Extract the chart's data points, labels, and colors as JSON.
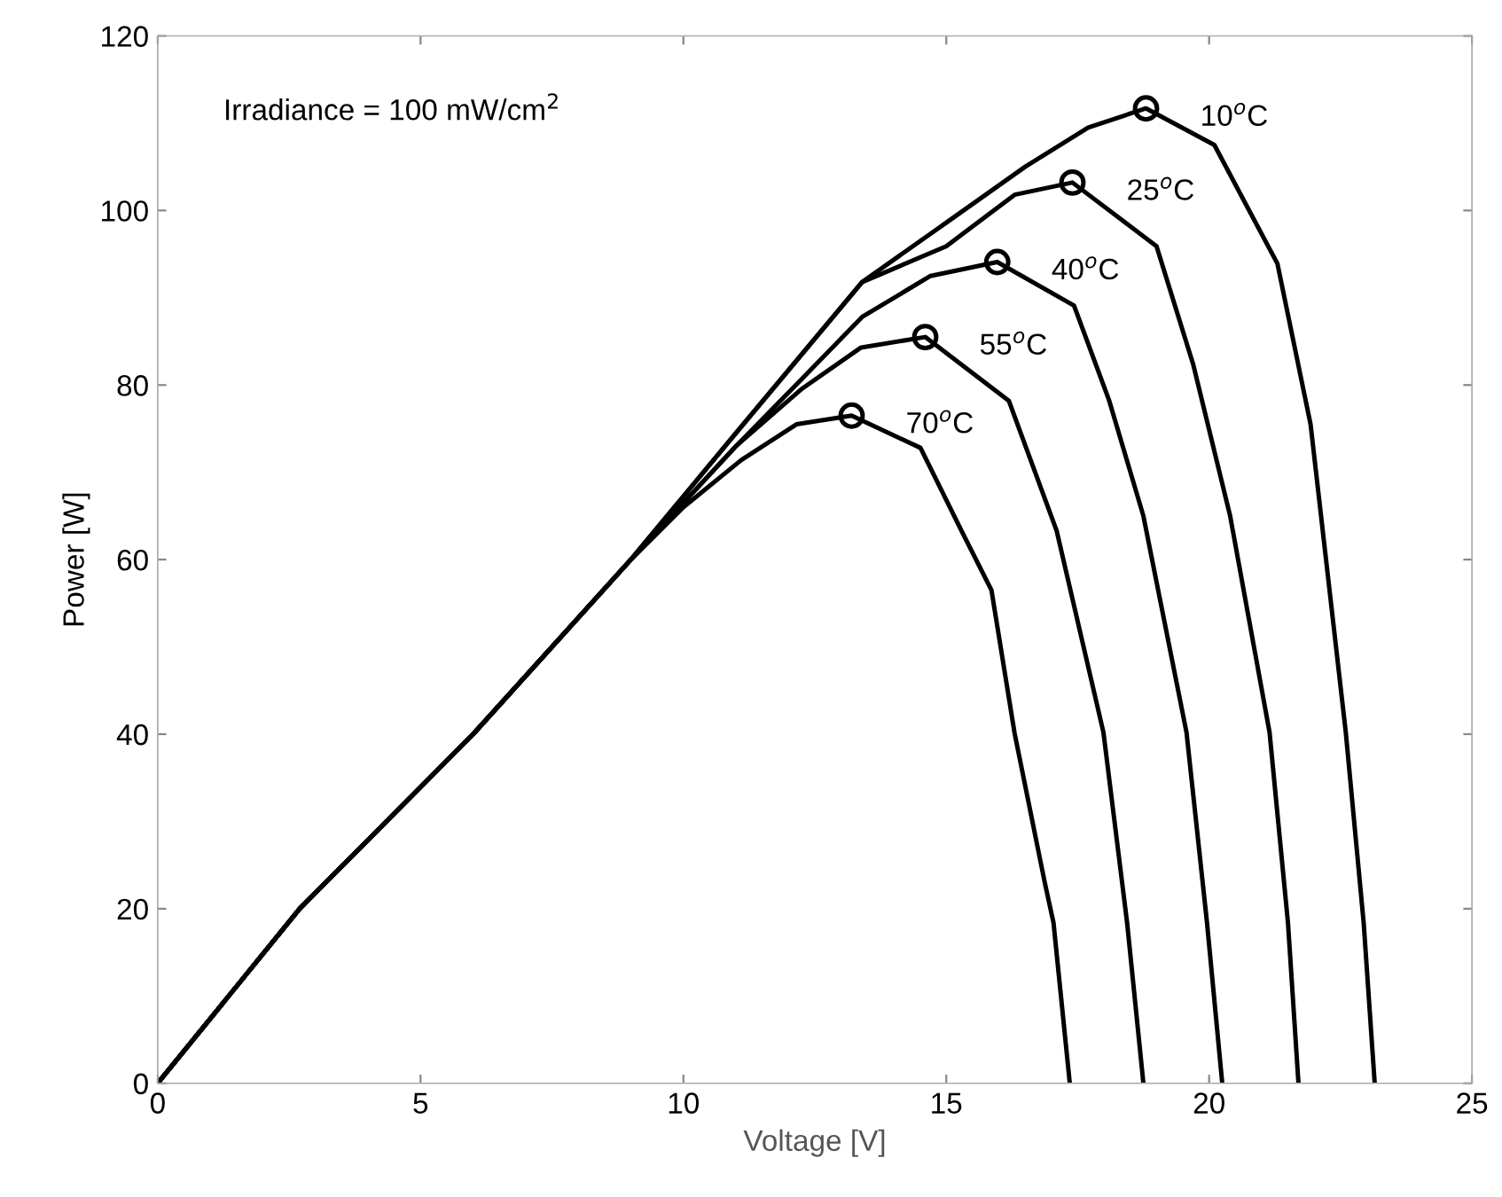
{
  "chart_data": {
    "type": "line",
    "xlabel": "Voltage [V]",
    "ylabel": "Power [W]",
    "annotations": [
      "Irradiance = 100 mW/cm$^{2}$"
    ],
    "xlim": [
      0,
      25
    ],
    "ylim": [
      0,
      120
    ],
    "xticks": [
      0,
      5,
      10,
      15,
      20,
      25
    ],
    "yticks": [
      0,
      20,
      40,
      60,
      80,
      100,
      120
    ],
    "grid": false,
    "legend": false,
    "marker": "none",
    "line_style": "solid",
    "series": [
      {
        "name": "10$^{o}$C",
        "color": "#000000",
        "x": [
          0,
          2.7,
          6,
          9,
          11,
          13.4,
          15,
          16.5,
          17.7,
          18.8,
          20.1,
          21.3,
          21.93,
          22.6,
          22.94,
          23.15
        ],
        "values": [
          0,
          20,
          40,
          60,
          74.5,
          91.8,
          98.6,
          105,
          109.5,
          111.7,
          107.5,
          93.9,
          75.5,
          40.2,
          18.4,
          0
        ]
      },
      {
        "name": "25$^{o}$C",
        "color": "#000000",
        "x": [
          0,
          2.7,
          6,
          9,
          11,
          13.4,
          15,
          16.3,
          17.4,
          19.0,
          19.7,
          20.4,
          21.15,
          21.5,
          21.7
        ],
        "values": [
          0,
          20,
          40,
          60,
          74.5,
          91.8,
          95.9,
          101.8,
          103.2,
          95.9,
          82.3,
          65,
          40.2,
          18.4,
          0
        ]
      },
      {
        "name": "40$^{o}$C",
        "color": "#000000",
        "x": [
          0,
          2.7,
          6,
          9,
          11,
          12.3,
          13.4,
          14.7,
          15.97,
          17.43,
          18.1,
          18.75,
          19.57,
          19.96,
          20.25
        ],
        "values": [
          0,
          20,
          40,
          60,
          73,
          81,
          87.8,
          92.5,
          94.1,
          89.1,
          78.2,
          65,
          40.2,
          18.4,
          0
        ]
      },
      {
        "name": "55$^{o}$C",
        "color": "#000000",
        "x": [
          0,
          2.7,
          6,
          9,
          11,
          12.26,
          13.38,
          14.6,
          16.19,
          17.1,
          17.99,
          18.44,
          18.75
        ],
        "values": [
          0,
          20,
          40,
          60,
          73,
          79.6,
          84.3,
          85.5,
          78.2,
          63.3,
          40.2,
          18.4,
          0
        ]
      },
      {
        "name": "70$^{o}$C",
        "color": "#000000",
        "x": [
          0,
          2.7,
          6,
          9,
          10,
          11.1,
          12.15,
          13.2,
          14.51,
          15.29,
          15.86,
          16.3,
          16.87,
          17.04,
          17.35
        ],
        "values": [
          0,
          20,
          40,
          60,
          66,
          71.4,
          75.5,
          76.5,
          72.8,
          63.3,
          56.5,
          40.1,
          23.1,
          18.4,
          0
        ]
      },
      {
        "type": "scatter",
        "marker": "circle",
        "color": "#000000",
        "x": [
          18.8,
          17.4,
          15.97,
          14.6,
          13.2
        ],
        "values": [
          111.7,
          103.2,
          94.1,
          85.5,
          76.5
        ]
      }
    ]
  }
}
